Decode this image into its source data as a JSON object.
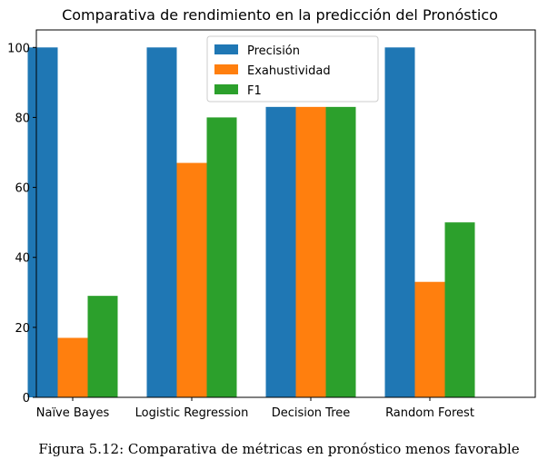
{
  "chart_data": {
    "type": "bar",
    "title": "Comparativa de rendimiento en la predicción del Pronóstico",
    "xlabel": "",
    "ylabel": "",
    "categories": [
      "Naïve Bayes",
      "Logistic Regression",
      "Decision Tree",
      "Random Forest"
    ],
    "series": [
      {
        "name": "Precisión",
        "color": "#1f77b4",
        "values": [
          100,
          100,
          83,
          100
        ]
      },
      {
        "name": "Exahustividad",
        "color": "#ff7f0e",
        "values": [
          17,
          67,
          83,
          33
        ]
      },
      {
        "name": "F1",
        "color": "#2ca02c",
        "values": [
          29,
          80,
          83,
          50
        ]
      }
    ],
    "ylim": [
      0,
      105
    ],
    "yticks": [
      0,
      20,
      40,
      60,
      80,
      100
    ],
    "grid": false,
    "legend": "top-center"
  },
  "caption": "Figura 5.12: Comparativa de métricas en pronóstico menos favorable"
}
